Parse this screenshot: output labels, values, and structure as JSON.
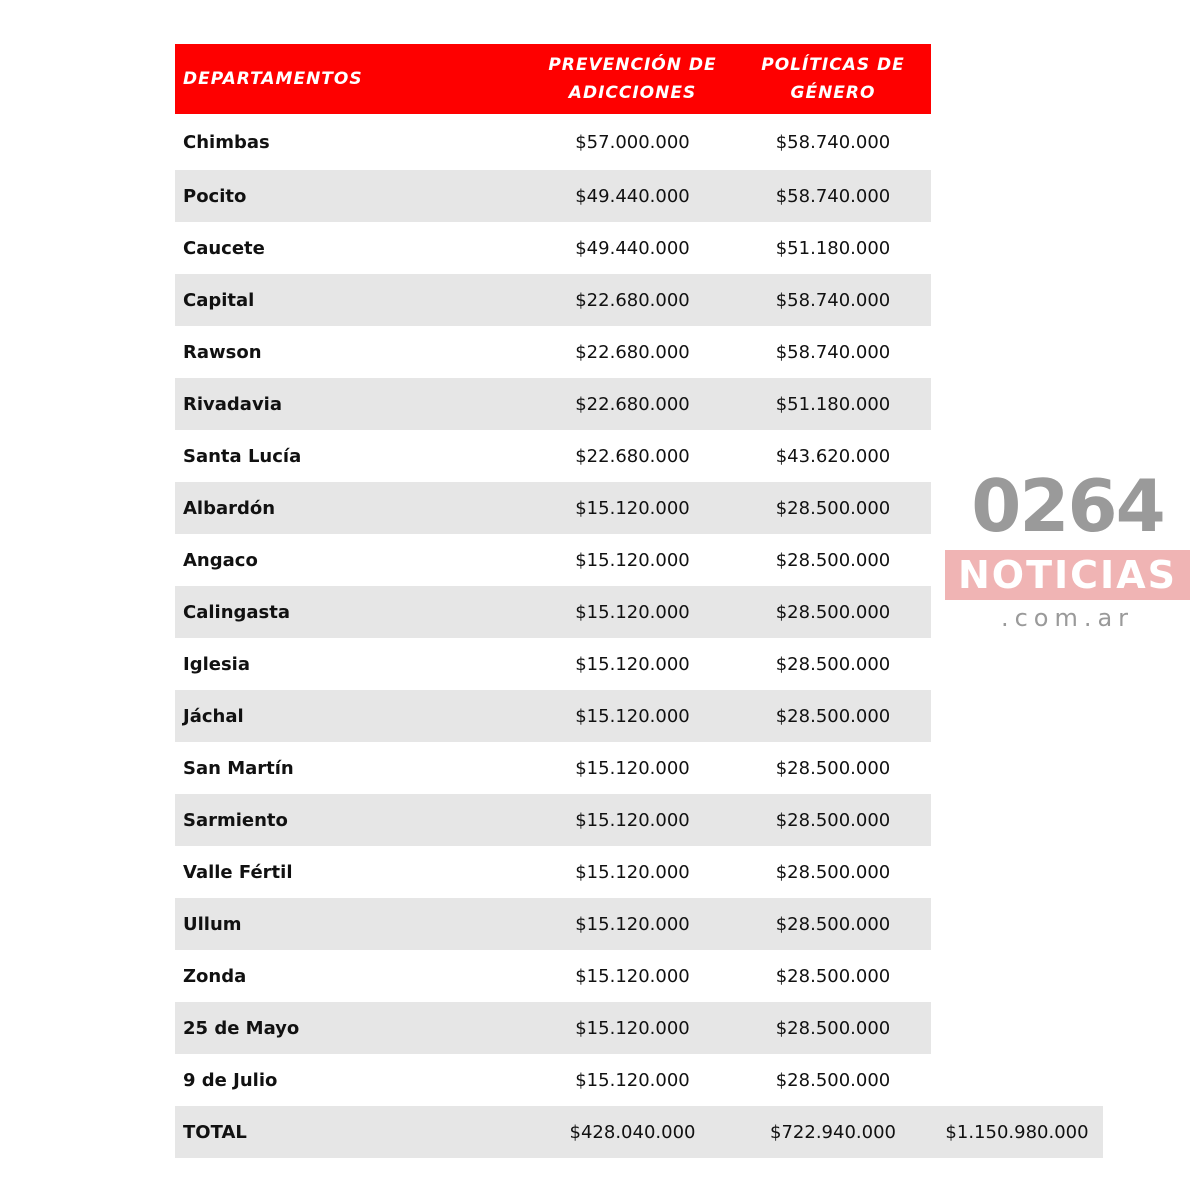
{
  "table": {
    "headers": [
      "DEPARTAMENTOS",
      "PREVENCIÓN DE ADICCIONES",
      "POLÍTICAS DE GÉNERO"
    ],
    "rows": [
      [
        "Chimbas",
        "$57.000.000",
        "$58.740.000"
      ],
      [
        "Pocito",
        "$49.440.000",
        "$58.740.000"
      ],
      [
        "Caucete",
        "$49.440.000",
        "$51.180.000"
      ],
      [
        "Capital",
        "$22.680.000",
        "$58.740.000"
      ],
      [
        "Rawson",
        "$22.680.000",
        "$58.740.000"
      ],
      [
        "Rivadavia",
        "$22.680.000",
        "$51.180.000"
      ],
      [
        "Santa Lucía",
        "$22.680.000",
        "$43.620.000"
      ],
      [
        "Albardón",
        "$15.120.000",
        "$28.500.000"
      ],
      [
        "Angaco",
        "$15.120.000",
        "$28.500.000"
      ],
      [
        "Calingasta",
        "$15.120.000",
        "$28.500.000"
      ],
      [
        "Iglesia",
        "$15.120.000",
        "$28.500.000"
      ],
      [
        "Jáchal",
        "$15.120.000",
        "$28.500.000"
      ],
      [
        "San Martín",
        "$15.120.000",
        "$28.500.000"
      ],
      [
        "Sarmiento",
        "$15.120.000",
        "$28.500.000"
      ],
      [
        "Valle Fértil",
        "$15.120.000",
        "$28.500.000"
      ],
      [
        "Ullum",
        "$15.120.000",
        "$28.500.000"
      ],
      [
        "Zonda",
        "$15.120.000",
        "$28.500.000"
      ],
      [
        "25 de Mayo",
        "$15.120.000",
        "$28.500.000"
      ],
      [
        "9 de Julio",
        "$15.120.000",
        "$28.500.000"
      ]
    ],
    "total": [
      "TOTAL",
      "$428.040.000",
      "$722.940.000",
      "$1.150.980.000"
    ]
  },
  "watermark": {
    "number": "0264",
    "name": "NOTICIAS",
    "domain": ".com.ar"
  },
  "colors": {
    "header_bg": "#fe0000",
    "row_alt_bg": "#e6e6e6"
  }
}
